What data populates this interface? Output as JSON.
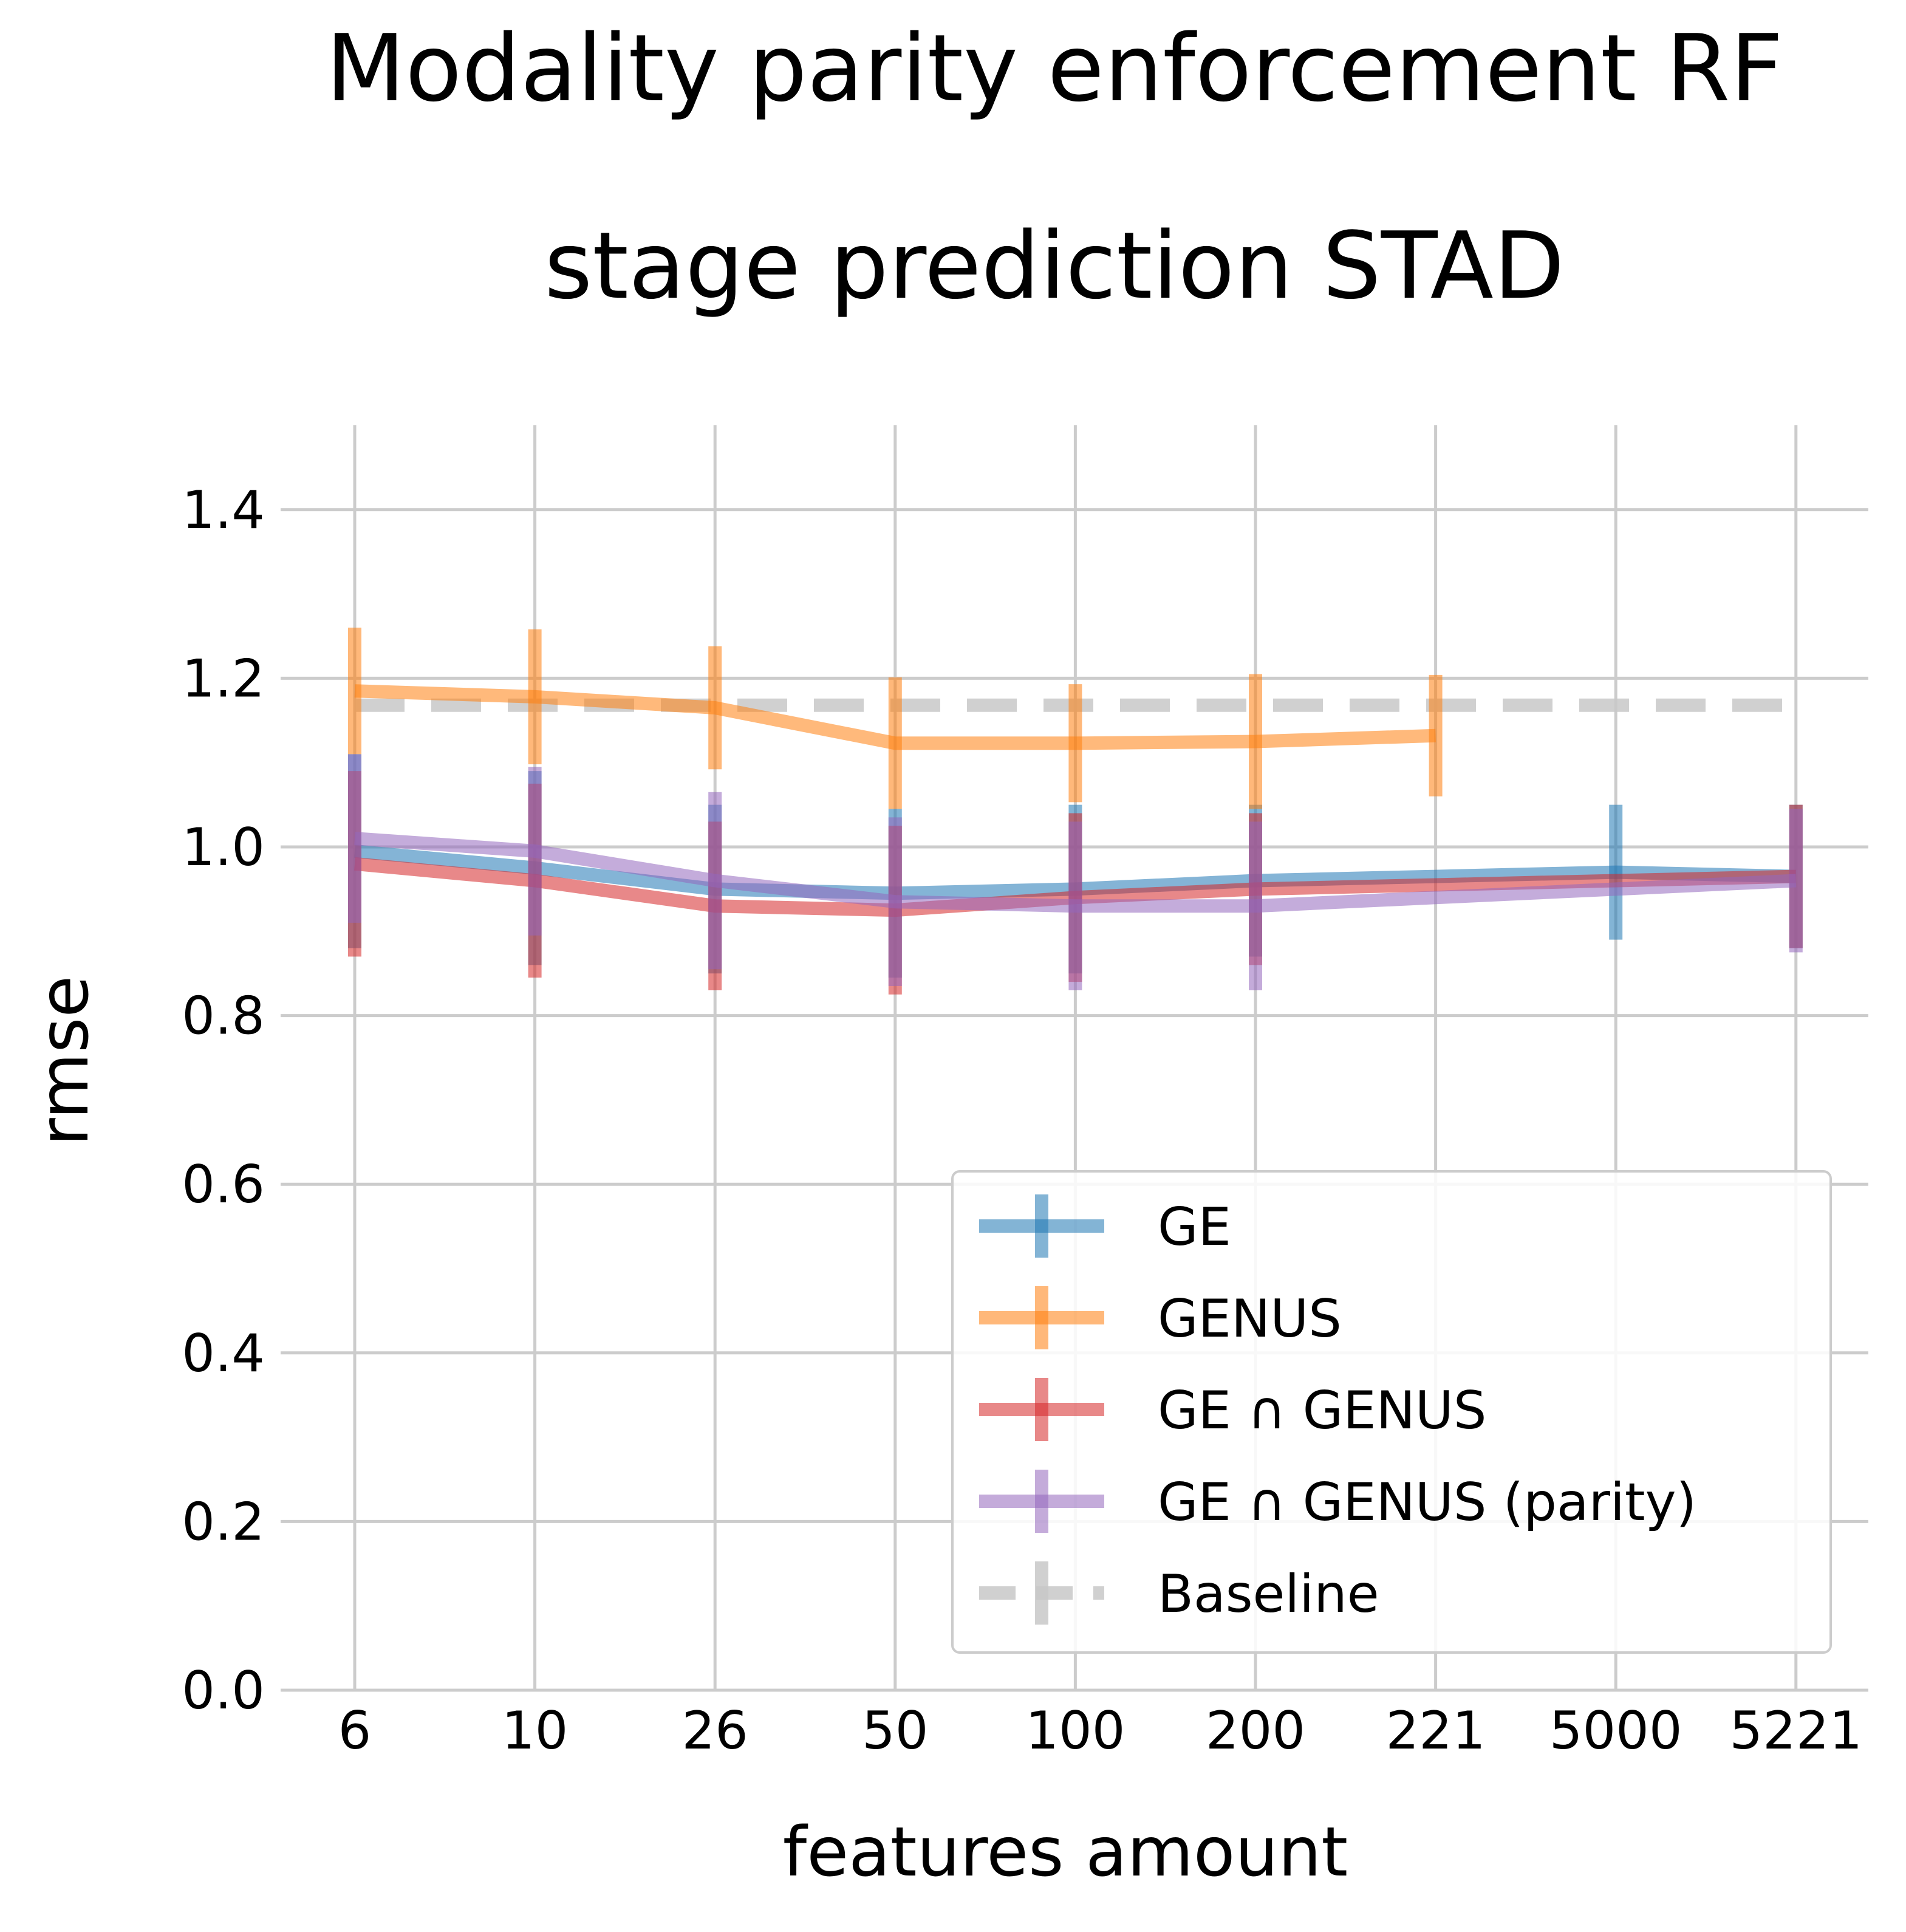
{
  "chart_data": {
    "type": "line",
    "title": "Modality parity enforcement RF",
    "subtitle": "stage prediction STAD",
    "xlabel": "features amount",
    "ylabel": "rmse",
    "categories": [
      "6",
      "10",
      "26",
      "50",
      "100",
      "200",
      "221",
      "5000",
      "5221"
    ],
    "yticks": [
      "0.0",
      "0.2",
      "0.4",
      "0.6",
      "0.8",
      "1.0",
      "1.2",
      "1.4"
    ],
    "ylim": [
      0,
      1.5
    ],
    "grid": true,
    "legend_position": "lower-right",
    "series": [
      {
        "name": "GE",
        "color": "#1f77b4",
        "values": [
          0.995,
          0.975,
          0.95,
          0.945,
          0.95,
          0.96,
          0.965,
          0.97,
          0.965
        ],
        "errors": [
          0.115,
          0.115,
          0.1,
          0.1,
          0.1,
          0.09,
          null,
          0.08,
          0.085
        ],
        "error_bars": [
          true,
          true,
          true,
          true,
          true,
          true,
          false,
          true,
          true
        ]
      },
      {
        "name": "GENUS",
        "color": "#ff7f0e",
        "values": [
          1.185,
          1.178,
          1.165,
          1.123,
          1.123,
          1.125,
          1.132,
          null,
          null
        ],
        "errors": [
          0.075,
          0.08,
          0.073,
          0.078,
          0.07,
          0.08,
          0.072,
          null,
          null
        ],
        "error_bars": [
          true,
          true,
          true,
          true,
          true,
          true,
          true,
          false,
          false
        ]
      },
      {
        "name": "GE ∩ GENUS",
        "color": "#d62728",
        "values": [
          0.98,
          0.96,
          0.93,
          0.925,
          0.94,
          0.95,
          0.955,
          0.96,
          0.965
        ],
        "errors": [
          0.11,
          0.115,
          0.1,
          0.1,
          0.1,
          0.09,
          null,
          null,
          0.085
        ],
        "error_bars": [
          true,
          true,
          true,
          true,
          true,
          true,
          false,
          false,
          true
        ]
      },
      {
        "name": "GE ∩ GENUS (parity)",
        "color": "#9467bd",
        "values": [
          1.01,
          0.995,
          0.96,
          0.935,
          0.93,
          0.93,
          0.94,
          0.95,
          0.96
        ],
        "errors": [
          0.1,
          0.1,
          0.105,
          0.1,
          0.1,
          0.1,
          null,
          null,
          0.085
        ],
        "error_bars": [
          true,
          true,
          true,
          true,
          true,
          true,
          false,
          false,
          true
        ]
      },
      {
        "name": "Baseline",
        "color": "#c8c8c8",
        "dashed": true,
        "values": [
          1.168,
          1.168,
          1.168,
          1.168,
          1.168,
          1.168,
          1.168,
          1.168,
          1.168
        ]
      }
    ]
  }
}
